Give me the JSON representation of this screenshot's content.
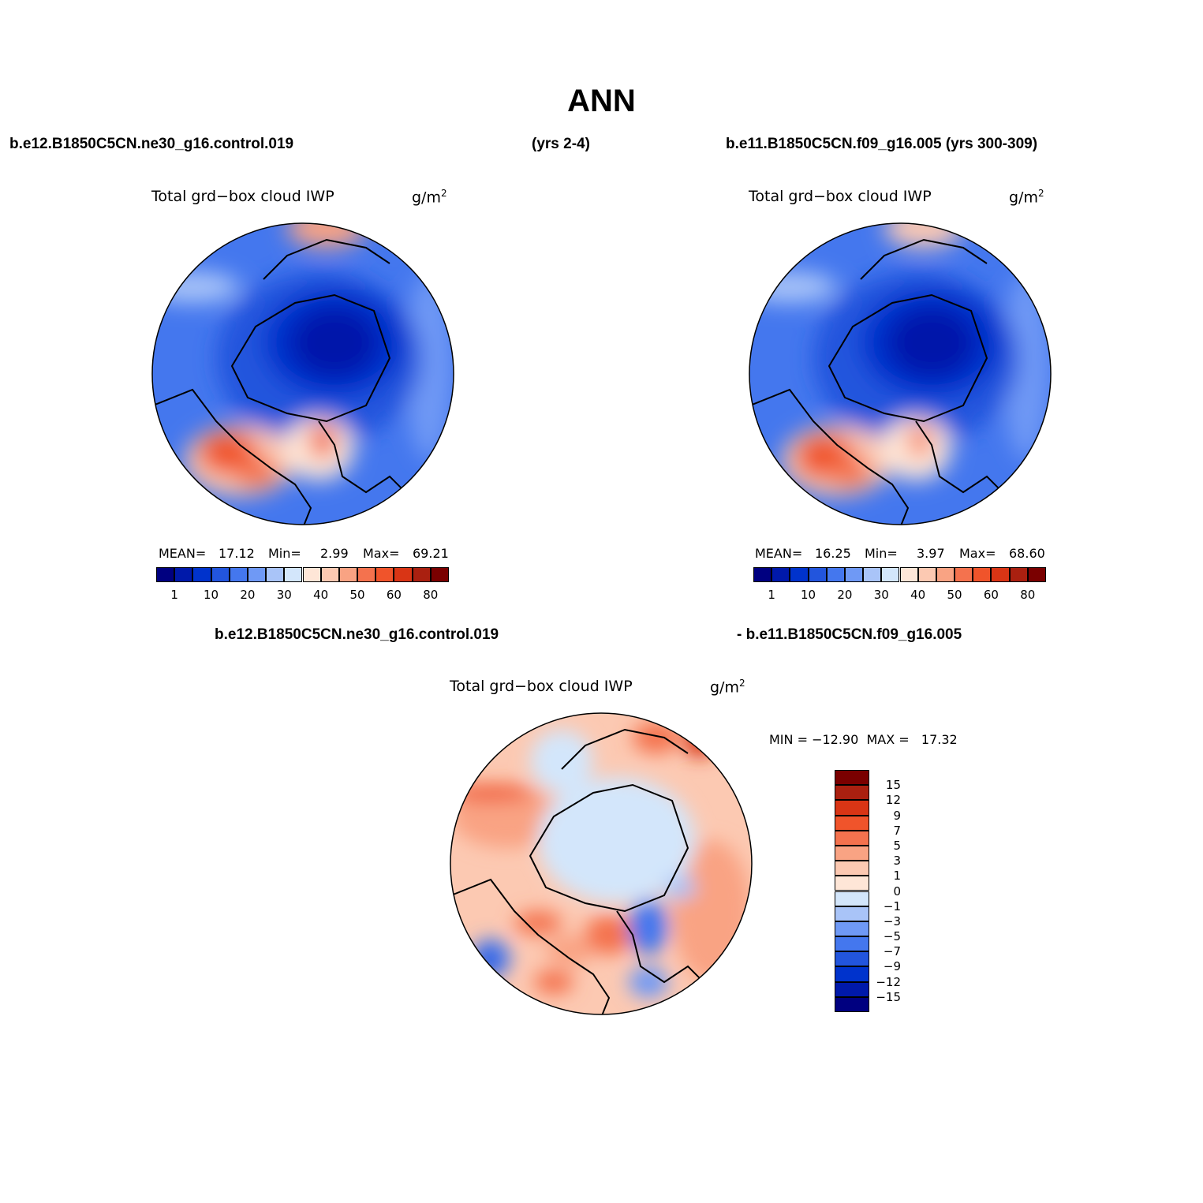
{
  "header": {
    "title": "ANN",
    "case_left": "b.e12.B1850C5CN.ne30_g16.control.019",
    "years_left": "(yrs 2-4)",
    "case_right": "b.e11.B1850C5CN.f09_g16.005 (yrs 300-309)",
    "diff_left": "b.e12.B1850C5CN.ne30_g16.control.019",
    "diff_right": "- b.e11.B1850C5CN.f09_g16.005"
  },
  "panels": [
    {
      "title": "Total grd−box cloud IWP",
      "units": "g/m",
      "units_sup": "2",
      "stats": {
        "mean_label": "MEAN=",
        "mean": "17.12",
        "min_label": "Min=",
        "min": "2.99",
        "max_label": "Max=",
        "max": "69.21"
      }
    },
    {
      "title": "Total grd−box cloud IWP",
      "units": "g/m",
      "units_sup": "2",
      "stats": {
        "mean_label": "MEAN=",
        "mean": "16.25",
        "min_label": "Min=",
        "min": "3.97",
        "max_label": "Max=",
        "max": "68.60"
      }
    },
    {
      "title": "Total grd−box cloud IWP",
      "units": "g/m",
      "units_sup": "2",
      "minmax": "MIN = −12.90  MAX =   17.32"
    }
  ],
  "colorbar_abs": {
    "colors": [
      "#000080",
      "#0019aa",
      "#0033cc",
      "#2255dd",
      "#4477ee",
      "#6f99f5",
      "#a9c4f8",
      "#d3e6fb",
      "#fee6d7",
      "#fcc9b2",
      "#f9a383",
      "#f4724e",
      "#f0542b",
      "#d93515",
      "#aa2010",
      "#7a0000"
    ],
    "labels": [
      "1",
      "10",
      "20",
      "30",
      "40",
      "50",
      "60",
      "80"
    ]
  },
  "colorbar_diff": {
    "colors": [
      "#7a0000",
      "#aa2010",
      "#d93515",
      "#f0542b",
      "#f4724e",
      "#f9a383",
      "#fcc9b2",
      "#fee6d7",
      "#d3e6fb",
      "#a9c4f8",
      "#6f99f5",
      "#4477ee",
      "#2255dd",
      "#0033cc",
      "#0019aa",
      "#000080"
    ],
    "labels": [
      "15",
      "12",
      "9",
      "7",
      "5",
      "3",
      "1",
      "0",
      "−1",
      "−3",
      "−5",
      "−7",
      "−9",
      "−12",
      "−15"
    ]
  }
}
